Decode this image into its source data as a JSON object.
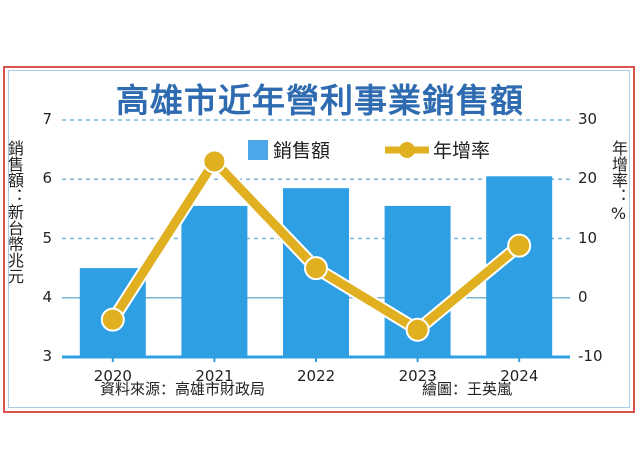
{
  "title": "高雄市近年營利事業銷售額",
  "left_axis_label": "銷售額：新台幣兆元",
  "right_axis_label": "年增率：%",
  "legend": {
    "bar": "銷售額",
    "line": "年增率"
  },
  "source": "資料來源：高雄市財政局",
  "credit": "繪圖：王英嵐",
  "colors": {
    "bar": "#2f9fe3",
    "line": "#e0b020",
    "title": "#2e6bb0",
    "border": "#d9534f",
    "grid": "#7bb6d6"
  },
  "chart_data": {
    "type": "bar",
    "title": "高雄市近年營利事業銷售額",
    "categories": [
      "2020",
      "2021",
      "2022",
      "2023",
      "2024"
    ],
    "series": [
      {
        "name": "銷售額",
        "type": "bar",
        "axis": "left",
        "values": [
          4.5,
          5.55,
          5.85,
          5.55,
          6.05
        ]
      },
      {
        "name": "年增率",
        "type": "line",
        "axis": "right",
        "values": [
          -3.7,
          23,
          5,
          -5.4,
          8.8
        ]
      }
    ],
    "ylabel": "銷售額：新台幣兆元",
    "y2label": "年增率：%",
    "ylim": [
      3,
      7
    ],
    "y2lim": [
      -10,
      30
    ],
    "yticks": [
      3,
      4,
      5,
      6,
      7
    ],
    "y2ticks": [
      -10,
      0,
      10,
      20,
      30
    ],
    "grid": true,
    "legend_position": "top"
  }
}
